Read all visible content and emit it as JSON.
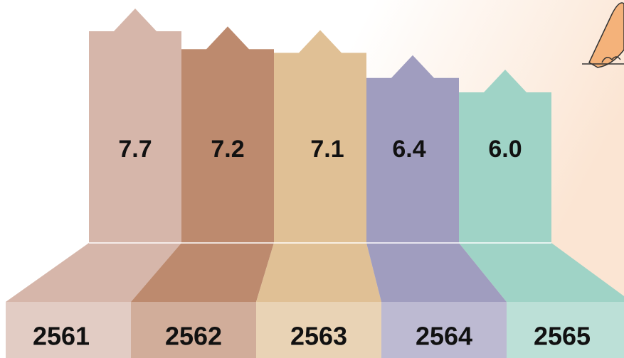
{
  "chart_data": {
    "type": "bar",
    "categories": [
      "2561",
      "2562",
      "2563",
      "2564",
      "2565"
    ],
    "values": [
      7.7,
      7.2,
      7.1,
      6.4,
      6.0
    ],
    "value_labels": [
      "7.7",
      "7.2",
      "7.1",
      "6.4",
      "6.0"
    ],
    "colors": [
      "#d6b6aa",
      "#bd8a6e",
      "#e0c095",
      "#a09dbf",
      "#9fd3c6"
    ]
  }
}
